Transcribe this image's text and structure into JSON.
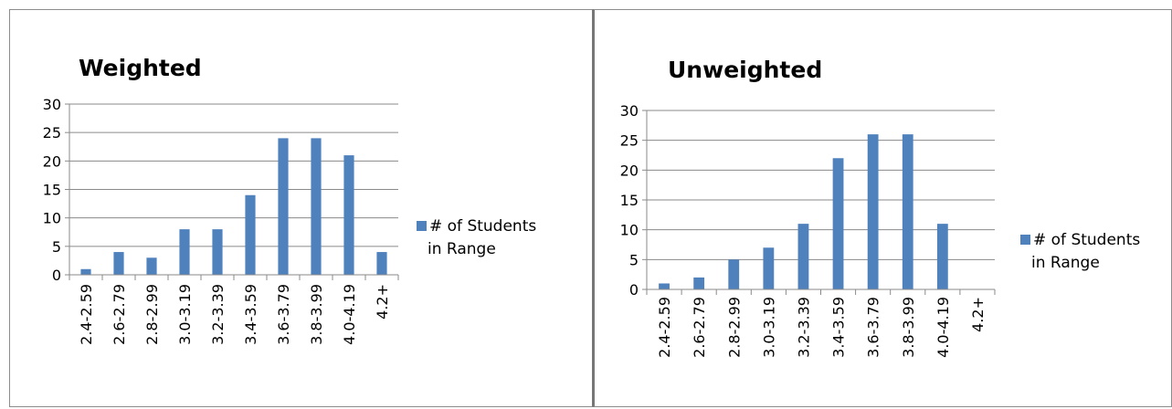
{
  "chart_data": [
    {
      "type": "bar",
      "title": "Weighted",
      "categories": [
        "2.4-2.59",
        "2.6-2.79",
        "2.8-2.99",
        "3.0-3.19",
        "3.2-3.39",
        "3.4-3.59",
        "3.6-3.79",
        "3.8-3.99",
        "4.0-4.19",
        "4.2+"
      ],
      "series": [
        {
          "name": "# of Students in Range",
          "color": "#4f81bd",
          "values": [
            1,
            4,
            3,
            8,
            8,
            14,
            24,
            24,
            21,
            4
          ]
        }
      ],
      "legend_lines": [
        "# of Students",
        "in Range"
      ],
      "ylim": [
        0,
        30
      ],
      "yticks": [
        "0",
        "5",
        "10",
        "15",
        "20",
        "25",
        "30"
      ],
      "grid": true,
      "legend_position": "right",
      "xlabel": "",
      "ylabel": ""
    },
    {
      "type": "bar",
      "title": "Unweighted",
      "categories": [
        "2.4-2.59",
        "2.6-2.79",
        "2.8-2.99",
        "3.0-3.19",
        "3.2-3.39",
        "3.4-3.59",
        "3.6-3.79",
        "3.8-3.99",
        "4.0-4.19",
        "4.2+"
      ],
      "series": [
        {
          "name": "# of Students in Range",
          "color": "#4f81bd",
          "values": [
            1,
            2,
            5,
            7,
            11,
            22,
            26,
            26,
            11,
            0
          ]
        }
      ],
      "legend_lines": [
        "# of Students",
        "in Range"
      ],
      "ylim": [
        0,
        30
      ],
      "yticks": [
        "0",
        "5",
        "10",
        "15",
        "20",
        "25",
        "30"
      ],
      "grid": true,
      "legend_position": "right",
      "xlabel": "",
      "ylabel": ""
    }
  ]
}
